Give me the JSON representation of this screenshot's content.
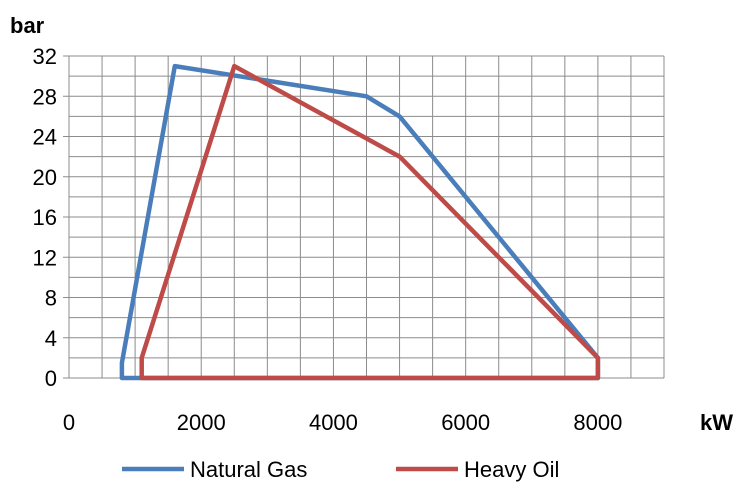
{
  "chart_data": {
    "type": "line",
    "ylabel": "bar",
    "xlabel": "kW",
    "xlim": [
      0,
      9000
    ],
    "ylim": [
      0,
      32
    ],
    "x_ticks": [
      0,
      2000,
      4000,
      6000,
      8000
    ],
    "y_ticks": [
      0,
      4,
      8,
      12,
      16,
      20,
      24,
      28,
      32
    ],
    "grid": true,
    "legend_position": "bottom",
    "series": [
      {
        "name": "Natural Gas",
        "color": "#4a7ebb",
        "points": [
          [
            800,
            0
          ],
          [
            800,
            1.5
          ],
          [
            1600,
            31
          ],
          [
            4500,
            28
          ],
          [
            5000,
            26
          ],
          [
            8000,
            2
          ],
          [
            8000,
            0
          ],
          [
            800,
            0
          ]
        ]
      },
      {
        "name": "Heavy Oil",
        "color": "#be4b48",
        "points": [
          [
            1100,
            0
          ],
          [
            1100,
            2
          ],
          [
            2500,
            31
          ],
          [
            5000,
            22
          ],
          [
            8000,
            2
          ],
          [
            8000,
            0
          ],
          [
            1100,
            0
          ]
        ]
      }
    ]
  }
}
